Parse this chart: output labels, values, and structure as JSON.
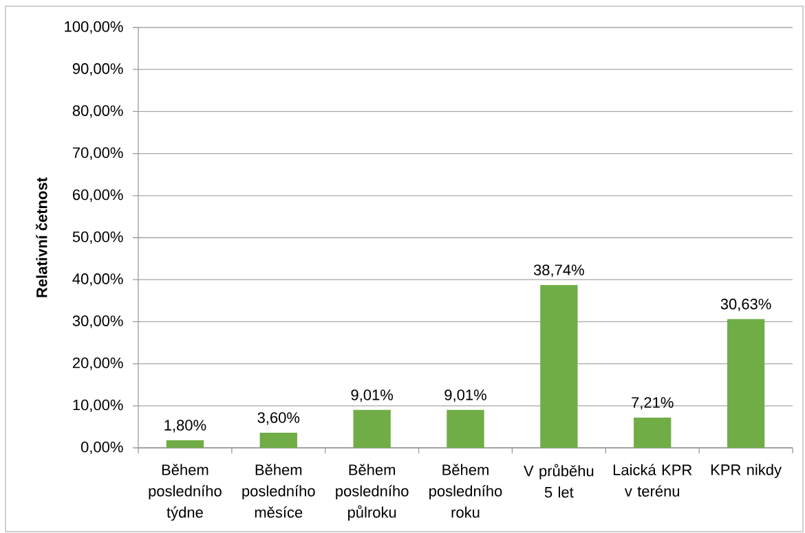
{
  "chart_data": {
    "type": "bar",
    "ylabel": "Relativní četnost",
    "categories": [
      "Během posledního týdne",
      "Během posledního měsíce",
      "Během posledního půlroku",
      "Během posledního roku",
      "V průběhu 5 let",
      "Laická KPR v terénu",
      "KPR nikdy"
    ],
    "values": [
      1.8,
      3.6,
      9.01,
      9.01,
      38.74,
      7.21,
      30.63
    ],
    "value_labels": [
      "1,80%",
      "3,60%",
      "9,01%",
      "9,01%",
      "38,74%",
      "7,21%",
      "30,63%"
    ],
    "color": "#70ad47",
    "ylim": [
      0,
      100
    ],
    "yticks": [
      {
        "value": 0,
        "label": "0,00%"
      },
      {
        "value": 10,
        "label": "10,00%"
      },
      {
        "value": 20,
        "label": "20,00%"
      },
      {
        "value": 30,
        "label": "30,00%"
      },
      {
        "value": 40,
        "label": "40,00%"
      },
      {
        "value": 50,
        "label": "50,00%"
      },
      {
        "value": 60,
        "label": "60,00%"
      },
      {
        "value": 70,
        "label": "70,00%"
      },
      {
        "value": 80,
        "label": "80,00%"
      },
      {
        "value": 90,
        "label": "90,00%"
      },
      {
        "value": 100,
        "label": "100,00%"
      }
    ],
    "grid": "y"
  }
}
